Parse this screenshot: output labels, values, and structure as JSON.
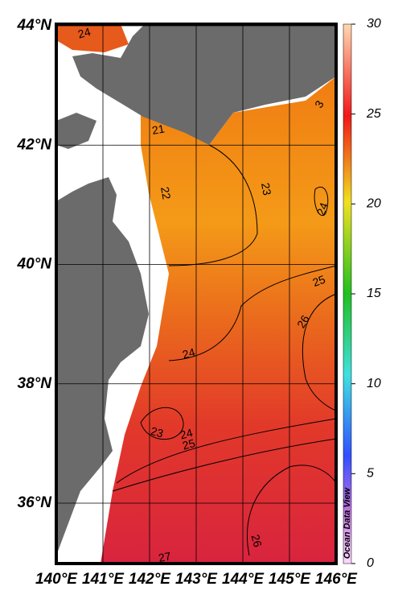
{
  "map": {
    "lat_ticks": [
      {
        "value": 44,
        "label": "44°N"
      },
      {
        "value": 42,
        "label": "42°N"
      },
      {
        "value": 40,
        "label": "40°N"
      },
      {
        "value": 38,
        "label": "38°N"
      },
      {
        "value": 36,
        "label": "36°N"
      }
    ],
    "lon_ticks": [
      {
        "value": 140,
        "label": "140°E"
      },
      {
        "value": 141,
        "label": "141°E"
      },
      {
        "value": 142,
        "label": "142°E"
      },
      {
        "value": 143,
        "label": "143°E"
      },
      {
        "value": 144,
        "label": "144°E"
      },
      {
        "value": 145,
        "label": "145°E"
      },
      {
        "value": 146,
        "label": "146°E"
      }
    ],
    "contour_labels": [
      24,
      21,
      22,
      23,
      24,
      25,
      26,
      24,
      23,
      24,
      25,
      26,
      27,
      3
    ],
    "colorbar": {
      "lim": [
        0,
        30
      ],
      "ticks": [
        0,
        5,
        10,
        15,
        20,
        25,
        30
      ]
    },
    "credit": "Ocean Data View"
  }
}
